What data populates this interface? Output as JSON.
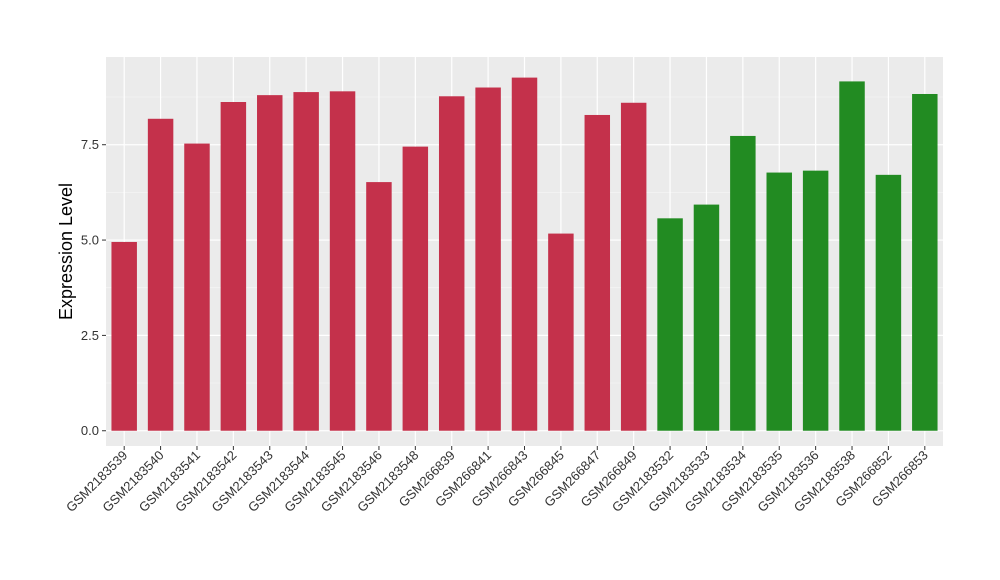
{
  "chart_data": {
    "type": "bar",
    "ylabel": "Expression Level",
    "xlabel": "",
    "ylim": [
      -0.4,
      9.8
    ],
    "yticks": [
      0.0,
      2.5,
      5.0,
      7.5
    ],
    "ytick_labels": [
      "0.0",
      "2.5",
      "5.0",
      "7.5"
    ],
    "grid": true,
    "background": "#ebebeb",
    "colors": {
      "group_a": "#c4314b",
      "group_b": "#228b22"
    },
    "categories": [
      "GSM2183539",
      "GSM2183540",
      "GSM2183541",
      "GSM2183542",
      "GSM2183543",
      "GSM2183544",
      "GSM2183545",
      "GSM2183546",
      "GSM2183548",
      "GSM266839",
      "GSM266841",
      "GSM266843",
      "GSM266845",
      "GSM266847",
      "GSM266849",
      "GSM2183532",
      "GSM2183533",
      "GSM2183534",
      "GSM2183535",
      "GSM2183536",
      "GSM2183538",
      "GSM266852",
      "GSM266853"
    ],
    "values": [
      4.95,
      8.18,
      7.53,
      8.62,
      8.8,
      8.88,
      8.9,
      6.52,
      7.45,
      8.77,
      9.0,
      9.26,
      5.17,
      8.28,
      8.6,
      5.57,
      5.93,
      7.73,
      6.77,
      6.82,
      9.16,
      6.71,
      8.83
    ],
    "groups": [
      "a",
      "a",
      "a",
      "a",
      "a",
      "a",
      "a",
      "a",
      "a",
      "a",
      "a",
      "a",
      "a",
      "a",
      "a",
      "b",
      "b",
      "b",
      "b",
      "b",
      "b",
      "b",
      "b"
    ]
  }
}
